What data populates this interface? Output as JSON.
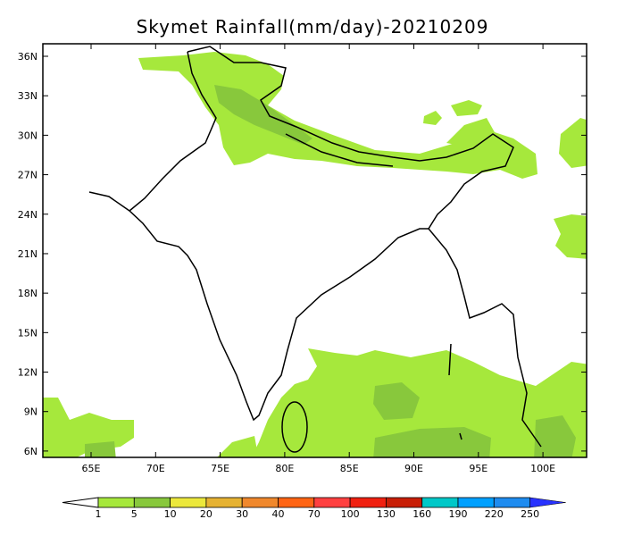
{
  "title": "Skymet Rainfall(mm/day)-20210209",
  "map": {
    "lon_ticks": [
      "65E",
      "70E",
      "75E",
      "80E",
      "85E",
      "90E",
      "95E",
      "100E"
    ],
    "lat_ticks": [
      "36N",
      "33N",
      "30N",
      "27N",
      "24N",
      "21N",
      "18N",
      "15N",
      "12N",
      "9N",
      "6N"
    ],
    "lon_values": [
      65,
      70,
      75,
      80,
      85,
      90,
      95,
      100
    ],
    "lat_values": [
      36,
      33,
      30,
      27,
      24,
      21,
      18,
      15,
      12,
      9,
      6
    ]
  },
  "legend": {
    "labels": [
      "1",
      "5",
      "10",
      "20",
      "30",
      "40",
      "70",
      "100",
      "130",
      "160",
      "190",
      "220",
      "250"
    ],
    "colors": [
      "#a6e83c",
      "#88c83c",
      "#ece83c",
      "#e6b232",
      "#f0882c",
      "#ff6414",
      "#ff4040",
      "#f02010",
      "#c81e06",
      "#00c8c8",
      "#00a0ff",
      "#1e8cf0"
    ],
    "below_color": "#ffffff",
    "above_color": "#2832ff"
  },
  "colors": {
    "light_green": "#a6e83c",
    "dark_green": "#88c83c"
  }
}
